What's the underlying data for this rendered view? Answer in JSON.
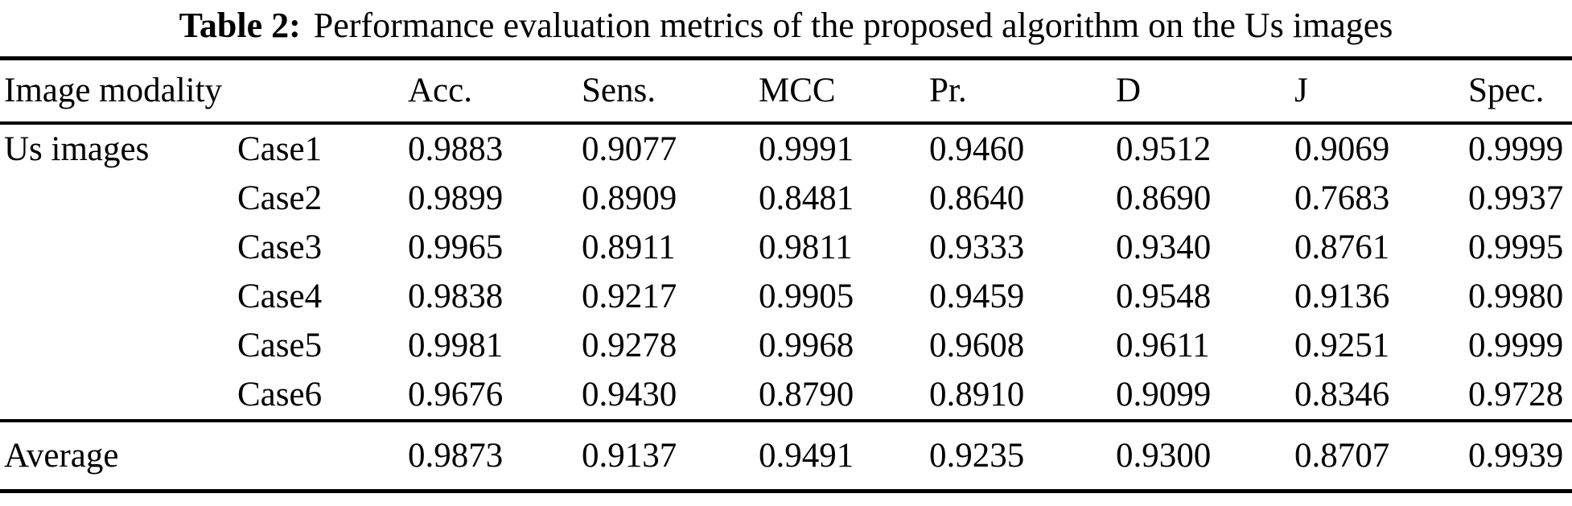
{
  "caption": {
    "label": "Table 2:",
    "text": "Performance evaluation metrics of the proposed algorithm on the Us images"
  },
  "table": {
    "group_header": "Image modality",
    "metric_headers": [
      "Acc.",
      "Sens.",
      "MCC",
      "Pr.",
      "D",
      "J",
      "Spec."
    ],
    "group_label": "Us images",
    "rows": [
      {
        "case": "Case1",
        "values": [
          "0.9883",
          "0.9077",
          "0.9991",
          "0.9460",
          "0.9512",
          "0.9069",
          "0.9999"
        ]
      },
      {
        "case": "Case2",
        "values": [
          "0.9899",
          "0.8909",
          "0.8481",
          "0.8640",
          "0.8690",
          "0.7683",
          "0.9937"
        ]
      },
      {
        "case": "Case3",
        "values": [
          "0.9965",
          "0.8911",
          "0.9811",
          "0.9333",
          "0.9340",
          "0.8761",
          "0.9995"
        ]
      },
      {
        "case": "Case4",
        "values": [
          "0.9838",
          "0.9217",
          "0.9905",
          "0.9459",
          "0.9548",
          "0.9136",
          "0.9980"
        ]
      },
      {
        "case": "Case5",
        "values": [
          "0.9981",
          "0.9278",
          "0.9968",
          "0.9608",
          "0.9611",
          "0.9251",
          "0.9999"
        ]
      },
      {
        "case": "Case6",
        "values": [
          "0.9676",
          "0.9430",
          "0.8790",
          "0.8910",
          "0.9099",
          "0.8346",
          "0.9728"
        ]
      }
    ],
    "average": {
      "label": "Average",
      "values": [
        "0.9873",
        "0.9137",
        "0.9491",
        "0.9235",
        "0.9300",
        "0.8707",
        "0.9939"
      ]
    }
  },
  "colors": {
    "background": "#ffffff",
    "text": "#000000",
    "rule": "#000000"
  }
}
